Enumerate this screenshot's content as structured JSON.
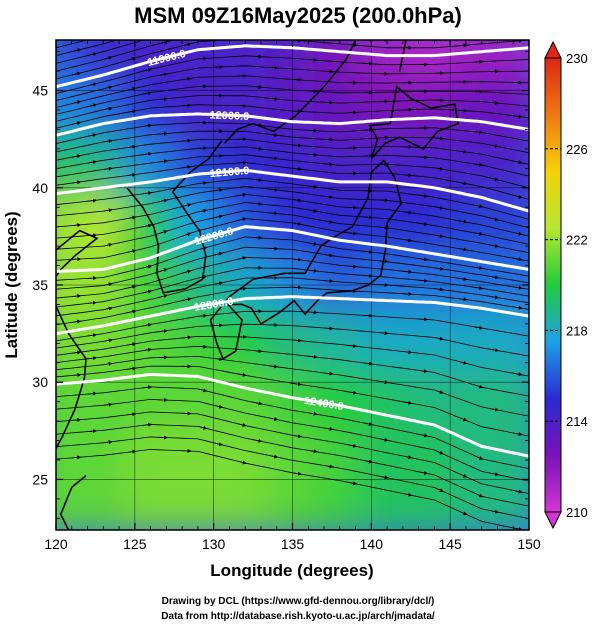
{
  "chart_data": {
    "type": "heatmap",
    "title": "MSM 09Z16May2025 (200.0hPa)",
    "xlabel": "Longitude (degrees)",
    "ylabel": "Latitude  (degrees)",
    "xlim": [
      120,
      150
    ],
    "ylim": [
      22.4,
      47.6
    ],
    "x_ticks": [
      120,
      125,
      130,
      135,
      140,
      145,
      150
    ],
    "y_ticks": [
      25,
      30,
      35,
      40,
      45
    ],
    "colorbar": {
      "range": [
        210,
        230
      ],
      "ticks": [
        210,
        214,
        218,
        222,
        226,
        230
      ],
      "colors": [
        "#d236d2",
        "#7a12b8",
        "#2a2ad2",
        "#1ea0e6",
        "#22cc3c",
        "#b4e632",
        "#f5d20a",
        "#f07814",
        "#dc2814"
      ]
    },
    "contours": [
      {
        "label": "11900.0",
        "level": 11900,
        "lon": [
          120,
          123,
          126,
          129,
          132,
          135,
          138,
          141,
          144,
          147,
          150
        ],
        "lat": [
          45.2,
          45.8,
          46.5,
          47.1,
          47.3,
          47.2,
          47.0,
          46.8,
          46.8,
          47.0,
          47.2
        ]
      },
      {
        "label": "12000.0",
        "level": 12000,
        "lon": [
          120,
          123,
          126,
          129,
          132,
          135,
          138,
          141,
          144,
          147,
          150
        ],
        "lat": [
          42.7,
          43.3,
          43.7,
          43.8,
          43.7,
          43.4,
          43.3,
          43.5,
          43.6,
          43.4,
          43.0
        ]
      },
      {
        "label": "12100.0",
        "level": 12100,
        "lon": [
          120,
          123,
          126,
          129,
          132,
          135,
          138,
          141,
          144,
          147,
          150
        ],
        "lat": [
          39.7,
          40.0,
          40.3,
          40.7,
          40.9,
          40.6,
          40.3,
          40.3,
          40.0,
          39.5,
          38.8
        ]
      },
      {
        "label": "12200.0",
        "level": 12200,
        "lon": [
          120,
          123,
          126,
          129,
          132,
          135,
          138,
          141,
          144,
          147,
          150
        ],
        "lat": [
          35.7,
          35.8,
          36.4,
          37.3,
          38.0,
          37.8,
          37.3,
          37.0,
          36.6,
          36.2,
          35.8
        ]
      },
      {
        "label": "12300.0",
        "level": 12300,
        "lon": [
          120,
          123,
          126,
          129,
          132,
          135,
          138,
          141,
          144,
          147,
          150
        ],
        "lat": [
          32.5,
          32.9,
          33.4,
          33.9,
          34.3,
          34.4,
          34.3,
          34.2,
          34.1,
          33.8,
          33.4
        ]
      },
      {
        "label": "12400.0",
        "level": 12400,
        "lon": [
          120,
          123,
          126,
          129,
          132,
          135,
          138,
          141,
          144,
          147,
          150
        ],
        "lat": [
          29.9,
          30.1,
          30.4,
          30.3,
          29.7,
          29.2,
          28.8,
          28.3,
          27.8,
          26.7,
          26.2
        ]
      }
    ],
    "temperature_field_note_values": {
      "sample_lon": [
        121,
        124,
        127,
        130,
        133,
        136,
        139,
        142,
        145,
        148
      ],
      "sample_lat": [
        46,
        43,
        40,
        37,
        34,
        31,
        28,
        25
      ],
      "values": [
        [
          216,
          214.5,
          214,
          214,
          214,
          213.5,
          212.5,
          211.5,
          211,
          211.5
        ],
        [
          217,
          216.5,
          215,
          214,
          214,
          213.5,
          213,
          212.5,
          212.5,
          213
        ],
        [
          219.5,
          219,
          217,
          215.5,
          215,
          214.5,
          214,
          214,
          214,
          214
        ],
        [
          222,
          222.5,
          220,
          217.5,
          216,
          215,
          215,
          215,
          215,
          215.5
        ],
        [
          222,
          222,
          220.5,
          219,
          218,
          217,
          216,
          216.5,
          216.5,
          216.5
        ],
        [
          221.5,
          221.5,
          221,
          220.5,
          220,
          219,
          218.5,
          218,
          218,
          218
        ],
        [
          221,
          221,
          221,
          221,
          221,
          220.5,
          220,
          219.5,
          219,
          219
        ],
        [
          221,
          221,
          221.5,
          221.5,
          221.5,
          221,
          220.5,
          219.5,
          219.5,
          219
        ]
      ]
    }
  },
  "credits": {
    "line1": "Drawing by DCL (https://www.gfd-dennou.org/library/dcl/)",
    "line2": "Data from http://database.rish.kyoto-u.ac.jp/arch/jmadata/"
  }
}
